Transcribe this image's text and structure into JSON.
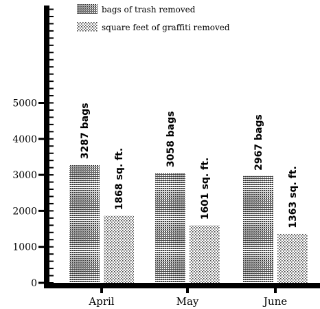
{
  "chart_data": {
    "type": "bar",
    "title": "",
    "xlabel": "",
    "ylabel": "",
    "categories": [
      "April",
      "May",
      "June"
    ],
    "ylim": [
      0,
      6000
    ],
    "yticks": [
      0,
      1000,
      2000,
      3000,
      4000,
      5000
    ],
    "ytick_labels": [
      "0",
      "1000",
      "2000",
      "3000",
      "4000",
      "5000"
    ],
    "grid": false,
    "legend_position": "top",
    "series": [
      {
        "name": "bags of trash removed",
        "pattern": "dense-dots",
        "color": "#555555",
        "values": [
          3287,
          3058,
          2967
        ],
        "labels": [
          "3287 bags",
          "3058 bags",
          "2967 bags"
        ]
      },
      {
        "name": "square feet of graffiti removed",
        "pattern": "sparse-dots",
        "color": "#9a9a9a",
        "values": [
          1868,
          1601,
          1363
        ],
        "labels": [
          "1868 sq. ft.",
          "1601 sq. ft.",
          "1363 sq. ft."
        ]
      }
    ]
  }
}
